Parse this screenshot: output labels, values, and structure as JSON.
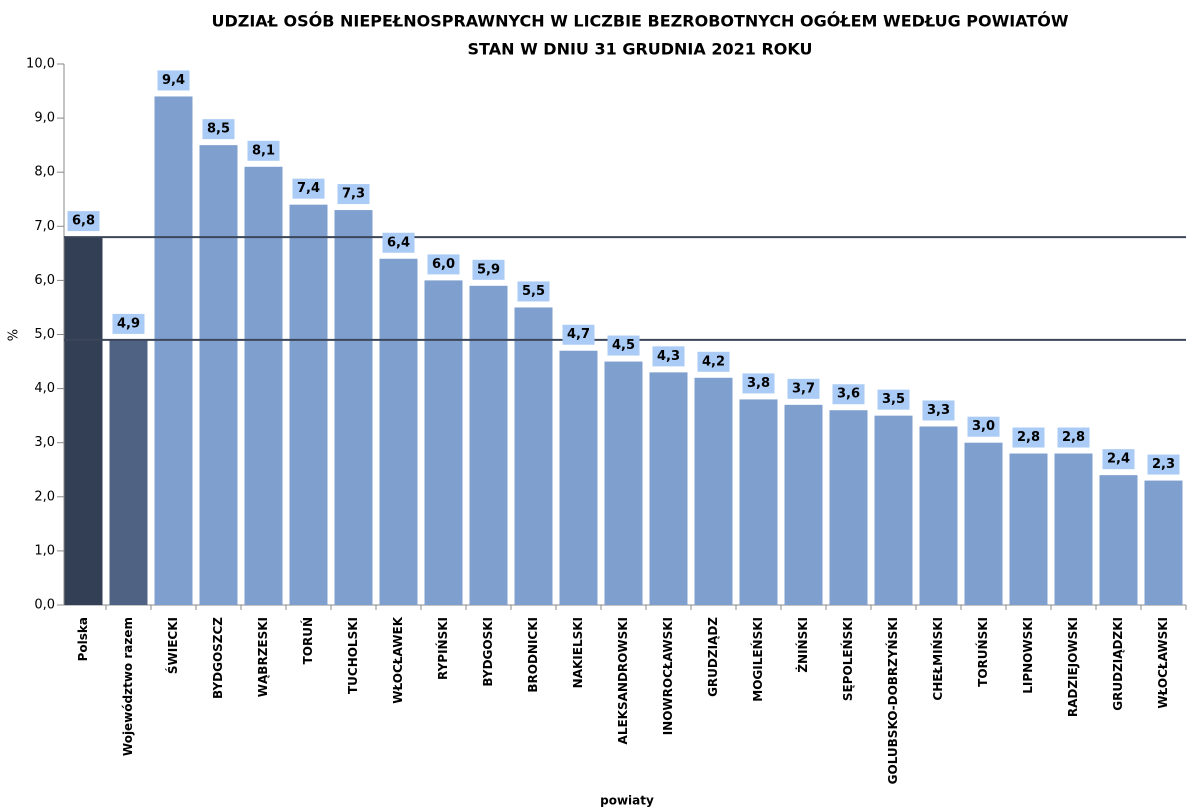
{
  "chart_data": {
    "type": "bar",
    "title": "UDZIAŁ OSÓB NIEPEŁNOSPRAWNYCH W LICZBIE BEZROBOTNYCH OGÓŁEM WEDŁUG POWIATÓW",
    "subtitle": "STAN W DNIU 31 GRUDNIA 2021 ROKU",
    "y_label": "%",
    "x_label": "powiaty",
    "categories": [
      "Polska",
      "Województwo razem",
      "ŚWIECKI",
      "BYDGOSZCZ",
      "WĄBRZESKI",
      "TORUŃ",
      "TUCHOLSKI",
      "WŁOCŁAWEK",
      "RYPIŃSKI",
      "BYDGOSKI",
      "BRODNICKI",
      "NAKIELSKI",
      "ALEKSANDROWSKI",
      "INOWROCŁAWSKI",
      "GRUDZIĄDZ",
      "MOGILEŃSKI",
      "ŻNIŃSKI",
      "SĘPOLEŃSKI",
      "GOLUBSKO-DOBRZYŃSKI",
      "CHEŁMIŃSKI",
      "TORUŃSKI",
      "LIPNOWSKI",
      "RADZIEJOWSKI",
      "GRUDZIĄDZKI",
      "WŁOCŁAWSKI"
    ],
    "values": [
      6.8,
      4.9,
      9.4,
      8.5,
      8.1,
      7.4,
      7.3,
      6.4,
      6.0,
      5.9,
      5.5,
      4.7,
      4.5,
      4.3,
      4.2,
      3.8,
      3.7,
      3.6,
      3.5,
      3.3,
      3.0,
      2.8,
      2.8,
      2.4,
      2.3
    ],
    "value_labels": [
      "6,8",
      "4,9",
      "9,4",
      "8,5",
      "8,1",
      "7,4",
      "7,3",
      "6,4",
      "6,0",
      "5,9",
      "5,5",
      "4,7",
      "4,5",
      "4,3",
      "4,2",
      "3,8",
      "3,7",
      "3,6",
      "3,5",
      "3,3",
      "3,0",
      "2,8",
      "2,8",
      "2,4",
      "2,3"
    ],
    "colors": [
      "#333f55",
      "#506283",
      "#7f9fcf",
      "#7f9fcf",
      "#7f9fcf",
      "#7f9fcf",
      "#7f9fcf",
      "#7f9fcf",
      "#7f9fcf",
      "#7f9fcf",
      "#7f9fcf",
      "#7f9fcf",
      "#7f9fcf",
      "#7f9fcf",
      "#7f9fcf",
      "#7f9fcf",
      "#7f9fcf",
      "#7f9fcf",
      "#7f9fcf",
      "#7f9fcf",
      "#7f9fcf",
      "#7f9fcf",
      "#7f9fcf",
      "#7f9fcf",
      "#7f9fcf"
    ],
    "reference_lines": [
      0,
      1
    ],
    "ylim": [
      0,
      10
    ],
    "yticks": [
      {
        "value": 0,
        "label": "0,0"
      },
      {
        "value": 1,
        "label": "1,0"
      },
      {
        "value": 2,
        "label": "2,0"
      },
      {
        "value": 3,
        "label": "3,0"
      },
      {
        "value": 4,
        "label": "4,0"
      },
      {
        "value": 5,
        "label": "5,0"
      },
      {
        "value": 6,
        "label": "6,0"
      },
      {
        "value": 7,
        "label": "7,0"
      },
      {
        "value": 8,
        "label": "8,0"
      },
      {
        "value": 9,
        "label": "9,0"
      },
      {
        "value": 10,
        "label": "10,0"
      }
    ]
  }
}
